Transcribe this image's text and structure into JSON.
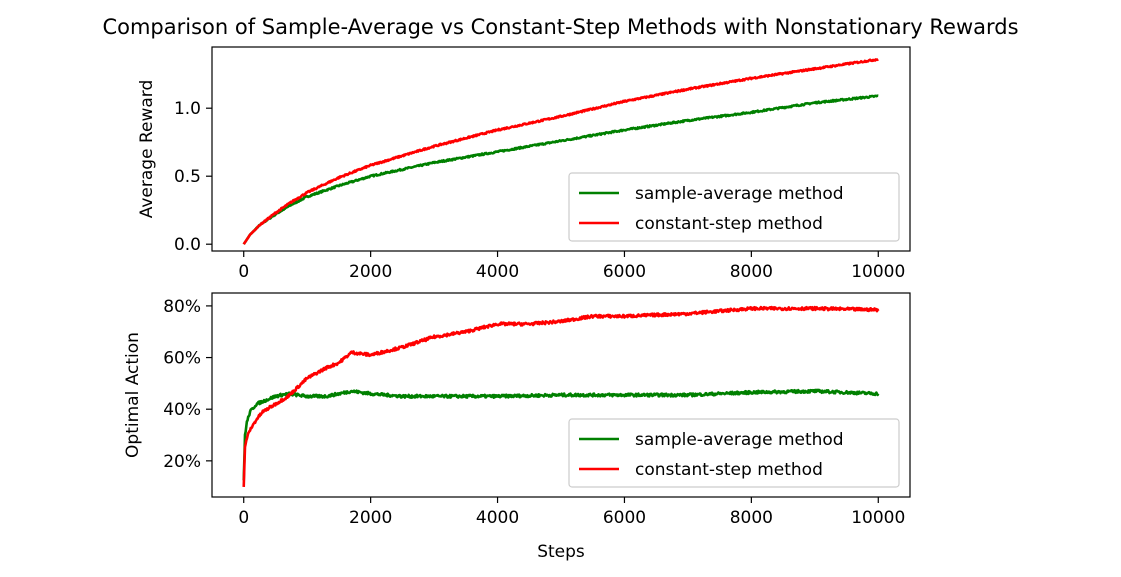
{
  "chart_data": [
    {
      "type": "line",
      "title": "Comparison of Sample-Average vs Constant-Step Methods with Nonstationary Rewards",
      "xlabel": "",
      "ylabel": "Average Reward",
      "xlim": [
        -500,
        10500
      ],
      "ylim": [
        -0.05,
        1.45
      ],
      "xticks": [
        0,
        2000,
        4000,
        6000,
        8000,
        10000
      ],
      "xtick_labels": [
        "0",
        "2000",
        "4000",
        "6000",
        "8000",
        "10000"
      ],
      "yticks": [
        0.0,
        0.5,
        1.0
      ],
      "ytick_labels": [
        "0.0",
        "0.5",
        "1.0"
      ],
      "grid": false,
      "legend_position": "lower-right",
      "series": [
        {
          "name": "sample-average method",
          "color": "#008000",
          "x": [
            0,
            100,
            250,
            500,
            750,
            1000,
            1500,
            2000,
            3000,
            4000,
            5000,
            6000,
            7000,
            8000,
            9000,
            10000
          ],
          "values": [
            0.0,
            0.07,
            0.14,
            0.22,
            0.29,
            0.35,
            0.43,
            0.5,
            0.6,
            0.68,
            0.76,
            0.84,
            0.91,
            0.97,
            1.04,
            1.09
          ]
        },
        {
          "name": "constant-step method",
          "color": "#ff0000",
          "x": [
            0,
            100,
            250,
            500,
            750,
            1000,
            1500,
            2000,
            3000,
            4000,
            5000,
            6000,
            7000,
            8000,
            9000,
            10000
          ],
          "values": [
            0.0,
            0.07,
            0.14,
            0.23,
            0.31,
            0.38,
            0.49,
            0.58,
            0.72,
            0.84,
            0.94,
            1.05,
            1.14,
            1.22,
            1.29,
            1.36
          ]
        }
      ]
    },
    {
      "type": "line",
      "title": "",
      "xlabel": "Steps",
      "ylabel": "Optimal Action",
      "xlim": [
        -500,
        10500
      ],
      "ylim": [
        6,
        85
      ],
      "xticks": [
        0,
        2000,
        4000,
        6000,
        8000,
        10000
      ],
      "xtick_labels": [
        "0",
        "2000",
        "4000",
        "6000",
        "8000",
        "10000"
      ],
      "yticks": [
        20,
        40,
        60,
        80
      ],
      "ytick_labels": [
        "20%",
        "40%",
        "60%",
        "80%"
      ],
      "grid": false,
      "legend_position": "lower-right",
      "series": [
        {
          "name": "sample-average method",
          "color": "#008000",
          "x": [
            0,
            20,
            50,
            100,
            200,
            300,
            500,
            700,
            1000,
            1300,
            1500,
            1700,
            2000,
            2500,
            3000,
            4000,
            5000,
            6000,
            7000,
            8000,
            9000,
            10000
          ],
          "values": [
            12,
            30,
            35,
            39,
            42,
            43,
            45,
            46,
            45,
            45,
            46,
            47,
            46,
            45,
            45,
            45,
            45.5,
            45.5,
            45.5,
            46.5,
            47,
            46
          ]
        },
        {
          "name": "constant-step method",
          "color": "#ff0000",
          "x": [
            0,
            20,
            50,
            100,
            200,
            300,
            500,
            700,
            1000,
            1300,
            1500,
            1700,
            2000,
            2500,
            3000,
            3500,
            4000,
            4500,
            5000,
            5500,
            6000,
            7000,
            8000,
            8500,
            9000,
            10000
          ],
          "values": [
            10,
            25,
            29,
            32,
            36,
            39,
            42,
            45,
            52,
            56,
            58,
            62,
            61,
            64,
            68,
            70,
            73,
            73,
            74,
            76,
            76,
            77,
            79,
            79,
            79,
            78.5
          ]
        }
      ]
    }
  ]
}
